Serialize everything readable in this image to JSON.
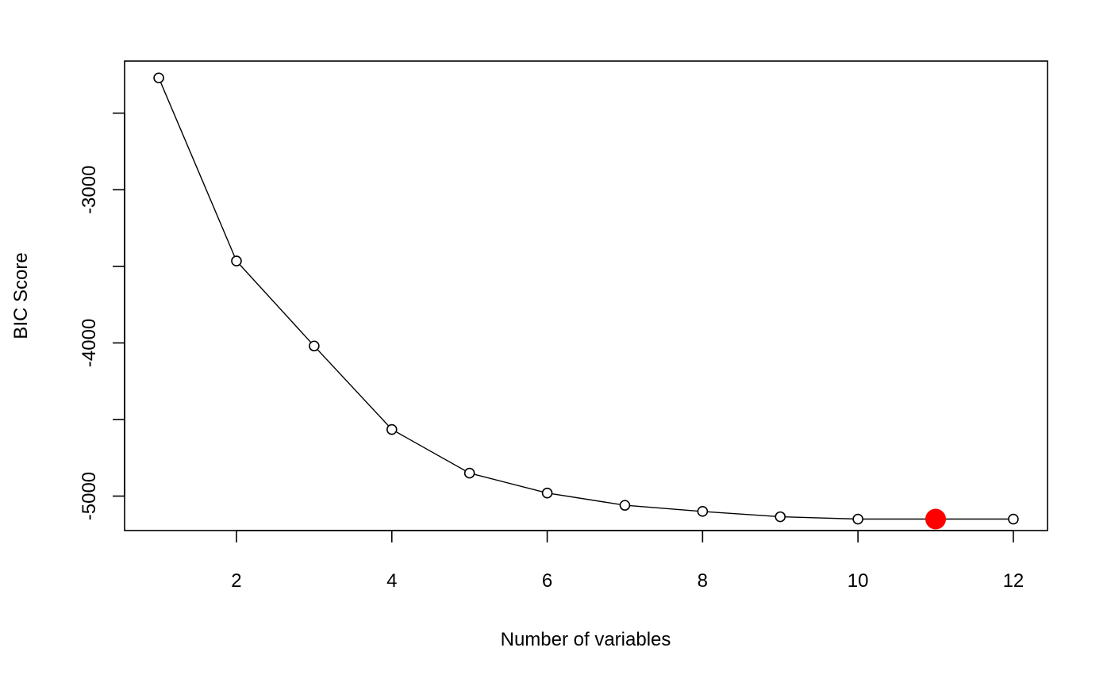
{
  "chart_data": {
    "type": "line",
    "title": "",
    "xlabel": "Number of variables",
    "ylabel": "BIC Score",
    "xlim": [
      0.56,
      12.44
    ],
    "ylim": [
      -5225,
      -2160
    ],
    "xticks": [
      2,
      4,
      6,
      8,
      10,
      12
    ],
    "yticks": [
      -3000,
      -4000,
      -5000
    ],
    "yticks_unlabeled": [
      -2500,
      -3500,
      -4500
    ],
    "grid": false,
    "legend": "none",
    "series": [
      {
        "x": [
          1,
          2,
          3,
          4,
          5,
          6,
          7,
          8,
          9,
          10,
          11,
          12
        ],
        "values": [
          -2270,
          -3465,
          -4020,
          -4565,
          -4850,
          -4980,
          -5060,
          -5100,
          -5135,
          -5150,
          -5150,
          -5150
        ],
        "marker": "open-circle",
        "color": "#000000"
      }
    ],
    "highlight": {
      "x": 11,
      "y": -5150,
      "marker": "filled-circle",
      "color": "#ff0000"
    }
  }
}
